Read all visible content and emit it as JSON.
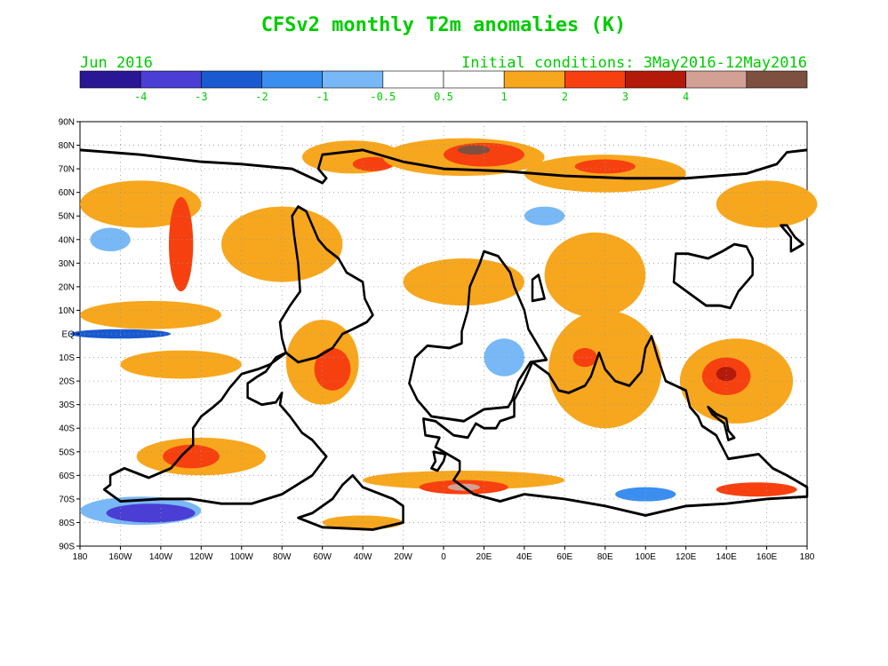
{
  "title": "CFSv2 monthly T2m anomalies (K)",
  "left_label": "Jun 2016",
  "right_label": "Initial conditions: 3May2016-12May2016",
  "colorbar": {
    "colors": [
      "#2a1796",
      "#4a3ed4",
      "#1a5ad0",
      "#3a8ef0",
      "#78b8f6",
      "#ffffff",
      "#ffffff",
      "#f7a71d",
      "#f7400f",
      "#b41a0a",
      "#d3a095",
      "#7e5040"
    ],
    "labels": [
      "-4",
      "-3",
      "-2",
      "-1",
      "-0.5",
      "0.5",
      "1",
      "2",
      "3",
      "4"
    ]
  },
  "map": {
    "grid_color": "#999999",
    "lat_labels": [
      "90N",
      "80N",
      "70N",
      "60N",
      "50N",
      "40N",
      "30N",
      "20N",
      "10N",
      "EQ",
      "10S",
      "20S",
      "30S",
      "40S",
      "50S",
      "60S",
      "70S",
      "80S",
      "90S"
    ],
    "lon_labels": [
      "180",
      "160W",
      "140W",
      "120W",
      "100W",
      "80W",
      "60W",
      "40W",
      "20W",
      "0",
      "20E",
      "40E",
      "60E",
      "80E",
      "100E",
      "120E",
      "140E",
      "160E",
      "180"
    ],
    "anomaly_patches": [
      {
        "c": "#f7a71d",
        "lon": -145,
        "lat": 8,
        "rx": 35,
        "ry": 6
      },
      {
        "c": "#f7a71d",
        "lon": -130,
        "lat": -13,
        "rx": 30,
        "ry": 6
      },
      {
        "c": "#f7a71d",
        "lon": -120,
        "lat": -52,
        "rx": 32,
        "ry": 8
      },
      {
        "c": "#f7400f",
        "lon": -125,
        "lat": -52,
        "rx": 14,
        "ry": 5
      },
      {
        "c": "#f7a71d",
        "lon": -150,
        "lat": 55,
        "rx": 30,
        "ry": 10
      },
      {
        "c": "#f7400f",
        "lon": -130,
        "lat": 38,
        "rx": 6,
        "ry": 20
      },
      {
        "c": "#f7a71d",
        "lon": -80,
        "lat": 38,
        "rx": 30,
        "ry": 16
      },
      {
        "c": "#f7a71d",
        "lon": -60,
        "lat": -12,
        "rx": 18,
        "ry": 18
      },
      {
        "c": "#f7400f",
        "lon": -55,
        "lat": -15,
        "rx": 9,
        "ry": 9
      },
      {
        "c": "#f7a71d",
        "lon": -45,
        "lat": 75,
        "rx": 25,
        "ry": 7
      },
      {
        "c": "#f7400f",
        "lon": -35,
        "lat": 72,
        "rx": 10,
        "ry": 3
      },
      {
        "c": "#f7a71d",
        "lon": 10,
        "lat": 75,
        "rx": 40,
        "ry": 8
      },
      {
        "c": "#f7400f",
        "lon": 20,
        "lat": 76,
        "rx": 20,
        "ry": 5
      },
      {
        "c": "#7e5040",
        "lon": 15,
        "lat": 78,
        "rx": 8,
        "ry": 2
      },
      {
        "c": "#f7a71d",
        "lon": 80,
        "lat": 68,
        "rx": 40,
        "ry": 8
      },
      {
        "c": "#f7400f",
        "lon": 80,
        "lat": 71,
        "rx": 15,
        "ry": 3
      },
      {
        "c": "#f7a71d",
        "lon": 10,
        "lat": 22,
        "rx": 30,
        "ry": 10
      },
      {
        "c": "#f7a71d",
        "lon": 75,
        "lat": 25,
        "rx": 25,
        "ry": 18
      },
      {
        "c": "#f7a71d",
        "lon": 80,
        "lat": -15,
        "rx": 28,
        "ry": 25
      },
      {
        "c": "#f7400f",
        "lon": 70,
        "lat": -10,
        "rx": 6,
        "ry": 4
      },
      {
        "c": "#f7a71d",
        "lon": 145,
        "lat": -20,
        "rx": 28,
        "ry": 18
      },
      {
        "c": "#f7400f",
        "lon": 140,
        "lat": -18,
        "rx": 12,
        "ry": 8
      },
      {
        "c": "#b41a0a",
        "lon": 140,
        "lat": -17,
        "rx": 5,
        "ry": 3
      },
      {
        "c": "#f7a71d",
        "lon": 160,
        "lat": 55,
        "rx": 25,
        "ry": 10
      },
      {
        "c": "#f7a71d",
        "lon": 10,
        "lat": -62,
        "rx": 50,
        "ry": 4
      },
      {
        "c": "#f7400f",
        "lon": 10,
        "lat": -65,
        "rx": 22,
        "ry": 3
      },
      {
        "c": "#d3a095",
        "lon": 10,
        "lat": -65,
        "rx": 8,
        "ry": 1.5
      },
      {
        "c": "#f7400f",
        "lon": 155,
        "lat": -66,
        "rx": 20,
        "ry": 3
      },
      {
        "c": "#f7a71d",
        "lon": -40,
        "lat": -80,
        "rx": 20,
        "ry": 3
      },
      {
        "c": "#78b8f6",
        "lon": -150,
        "lat": -75,
        "rx": 30,
        "ry": 6
      },
      {
        "c": "#4a3ed4",
        "lon": -145,
        "lat": -76,
        "rx": 22,
        "ry": 4
      },
      {
        "c": "#3a8ef0",
        "lon": 100,
        "lat": -68,
        "rx": 15,
        "ry": 3
      },
      {
        "c": "#1a5ad0",
        "lon": -160,
        "lat": 0,
        "rx": 25,
        "ry": 2
      },
      {
        "c": "#78b8f6",
        "lon": -165,
        "lat": 40,
        "rx": 10,
        "ry": 5
      },
      {
        "c": "#78b8f6",
        "lon": 30,
        "lat": -10,
        "rx": 10,
        "ry": 8
      },
      {
        "c": "#78b8f6",
        "lon": 50,
        "lat": 50,
        "rx": 10,
        "ry": 4
      }
    ]
  }
}
